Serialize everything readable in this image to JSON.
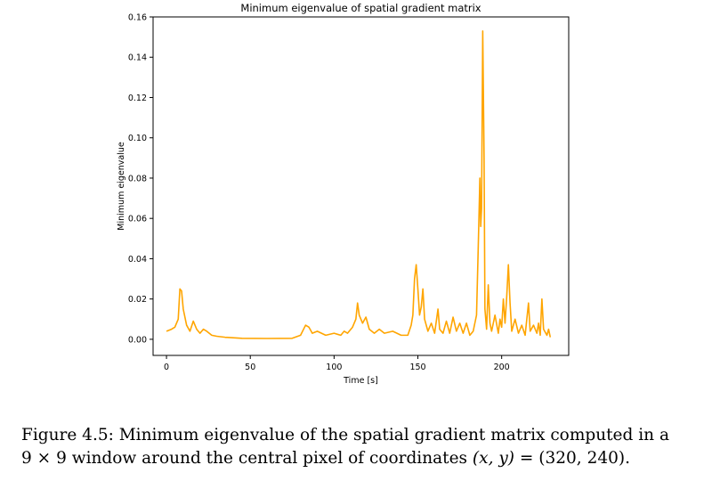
{
  "chart_data": {
    "type": "line",
    "title": "Minimum eigenvalue of spatial gradient matrix",
    "xlabel": "Time [s]",
    "ylabel": "Minimum eigenvalue",
    "xlim": [
      -8,
      240
    ],
    "ylim": [
      -0.008,
      0.16
    ],
    "xticks": [
      0,
      50,
      100,
      150,
      200
    ],
    "xtick_labels": [
      "0",
      "50",
      "100",
      "150",
      "200"
    ],
    "yticks": [
      0.0,
      0.02,
      0.04,
      0.06,
      0.08,
      0.1,
      0.12,
      0.14,
      0.16
    ],
    "ytick_labels": [
      "0.00",
      "0.02",
      "0.04",
      "0.06",
      "0.08",
      "0.10",
      "0.12",
      "0.14",
      "0.16"
    ],
    "grid": false,
    "series": [
      {
        "color": "#ffa500",
        "points": [
          [
            0,
            0.004
          ],
          [
            3,
            0.005
          ],
          [
            5,
            0.006
          ],
          [
            7,
            0.01
          ],
          [
            8,
            0.025
          ],
          [
            9,
            0.024
          ],
          [
            10,
            0.015
          ],
          [
            12,
            0.007
          ],
          [
            14,
            0.004
          ],
          [
            16,
            0.009
          ],
          [
            18,
            0.005
          ],
          [
            20,
            0.003
          ],
          [
            22,
            0.005
          ],
          [
            24,
            0.004
          ],
          [
            27,
            0.002
          ],
          [
            30,
            0.0015
          ],
          [
            35,
            0.001
          ],
          [
            45,
            0.0005
          ],
          [
            60,
            0.0004
          ],
          [
            75,
            0.0005
          ],
          [
            80,
            0.002
          ],
          [
            83,
            0.007
          ],
          [
            85,
            0.006
          ],
          [
            87,
            0.003
          ],
          [
            90,
            0.004
          ],
          [
            95,
            0.002
          ],
          [
            100,
            0.003
          ],
          [
            104,
            0.002
          ],
          [
            106,
            0.004
          ],
          [
            108,
            0.003
          ],
          [
            111,
            0.006
          ],
          [
            113,
            0.01
          ],
          [
            114,
            0.018
          ],
          [
            115,
            0.012
          ],
          [
            117,
            0.008
          ],
          [
            119,
            0.011
          ],
          [
            121,
            0.005
          ],
          [
            124,
            0.003
          ],
          [
            127,
            0.005
          ],
          [
            130,
            0.003
          ],
          [
            135,
            0.004
          ],
          [
            140,
            0.002
          ],
          [
            144,
            0.002
          ],
          [
            146,
            0.007
          ],
          [
            147,
            0.012
          ],
          [
            148,
            0.03
          ],
          [
            149,
            0.037
          ],
          [
            150,
            0.025
          ],
          [
            151,
            0.012
          ],
          [
            152,
            0.016
          ],
          [
            153,
            0.025
          ],
          [
            154,
            0.01
          ],
          [
            156,
            0.004
          ],
          [
            158,
            0.008
          ],
          [
            160,
            0.003
          ],
          [
            162,
            0.015
          ],
          [
            163,
            0.005
          ],
          [
            165,
            0.003
          ],
          [
            167,
            0.009
          ],
          [
            169,
            0.003
          ],
          [
            171,
            0.011
          ],
          [
            173,
            0.004
          ],
          [
            175,
            0.008
          ],
          [
            177,
            0.003
          ],
          [
            179,
            0.008
          ],
          [
            181,
            0.002
          ],
          [
            183,
            0.004
          ],
          [
            185,
            0.012
          ],
          [
            186,
            0.045
          ],
          [
            187,
            0.08
          ],
          [
            187.5,
            0.056
          ],
          [
            188,
            0.065
          ],
          [
            188.7,
            0.153
          ],
          [
            189.5,
            0.09
          ],
          [
            190,
            0.015
          ],
          [
            191,
            0.005
          ],
          [
            192,
            0.027
          ],
          [
            193,
            0.008
          ],
          [
            194,
            0.004
          ],
          [
            196,
            0.012
          ],
          [
            198,
            0.003
          ],
          [
            199,
            0.01
          ],
          [
            200,
            0.006
          ],
          [
            201,
            0.02
          ],
          [
            202,
            0.008
          ],
          [
            203,
            0.021
          ],
          [
            204,
            0.037
          ],
          [
            205,
            0.018
          ],
          [
            206,
            0.004
          ],
          [
            208,
            0.01
          ],
          [
            210,
            0.003
          ],
          [
            212,
            0.007
          ],
          [
            214,
            0.002
          ],
          [
            216,
            0.018
          ],
          [
            217,
            0.004
          ],
          [
            219,
            0.007
          ],
          [
            221,
            0.003
          ],
          [
            222,
            0.008
          ],
          [
            223,
            0.002
          ],
          [
            224,
            0.02
          ],
          [
            225,
            0.005
          ],
          [
            227,
            0.002
          ],
          [
            228,
            0.005
          ],
          [
            229,
            0.001
          ]
        ]
      }
    ]
  },
  "caption": {
    "line1": "Figure 4.5: Minimum eigenvalue of the spatial gradient matrix computed in a",
    "line2_num1": "9",
    "line2_times": "×",
    "line2_num2": "9",
    "line2_mid": " window around the central pixel of coordinates ",
    "line2_math": "(x, y)",
    "line2_eq": " = (320, 240)."
  }
}
